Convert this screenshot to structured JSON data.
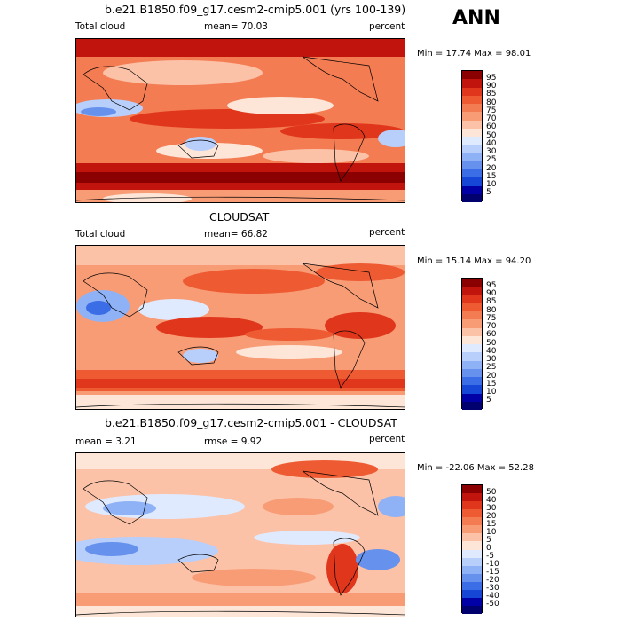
{
  "season": "ANN",
  "panels": [
    {
      "title": "b.e21.B1850.f09_g17.cesm2-cmip5.001 (yrs 100-139)",
      "left_label": "Total cloud",
      "mean_text": "mean=  70.03",
      "units": "percent",
      "minmax": "Min =  17.74  Max =  98.01",
      "levels": [
        "95",
        "90",
        "85",
        "80",
        "75",
        "70",
        "60",
        "50",
        "40",
        "30",
        "25",
        "20",
        "15",
        "10",
        "5"
      ],
      "colors": [
        "#8b0000",
        "#c0140c",
        "#e0361c",
        "#ee5a32",
        "#f47c52",
        "#f89c76",
        "#fbc2a8",
        "#fde6d8",
        "#e0eaff",
        "#b8cffb",
        "#8fb2f6",
        "#6692ee",
        "#3b6ee6",
        "#1646d6",
        "#0000a6",
        "#00006e"
      ]
    },
    {
      "title": "CLOUDSAT",
      "left_label": "Total cloud",
      "mean_text": "mean=  66.82",
      "units": "percent",
      "minmax": "Min =  15.14  Max =  94.20",
      "levels": [
        "95",
        "90",
        "85",
        "80",
        "75",
        "70",
        "60",
        "50",
        "40",
        "30",
        "25",
        "20",
        "15",
        "10",
        "5"
      ],
      "colors": [
        "#8b0000",
        "#c0140c",
        "#e0361c",
        "#ee5a32",
        "#f47c52",
        "#f89c76",
        "#fbc2a8",
        "#fde6d8",
        "#e0eaff",
        "#b8cffb",
        "#8fb2f6",
        "#6692ee",
        "#3b6ee6",
        "#1646d6",
        "#0000a6",
        "#00006e"
      ]
    },
    {
      "title": "b.e21.B1850.f09_g17.cesm2-cmip5.001 - CLOUDSAT",
      "left_label": "mean =   3.21",
      "mean_text": "rmse =   9.92",
      "units": "percent",
      "minmax": "Min = -22.06  Max =  52.28",
      "levels": [
        "50",
        "40",
        "30",
        "20",
        "15",
        "10",
        "5",
        "0",
        "-5",
        "-10",
        "-15",
        "-20",
        "-30",
        "-40",
        "-50"
      ],
      "colors": [
        "#8b0000",
        "#c0140c",
        "#e0361c",
        "#ee5a32",
        "#f47c52",
        "#f89c76",
        "#fbc2a8",
        "#fde6d8",
        "#e0eaff",
        "#b8cffb",
        "#8fb2f6",
        "#6692ee",
        "#3b6ee6",
        "#1646d6",
        "#0000a6",
        "#00006e"
      ]
    }
  ]
}
